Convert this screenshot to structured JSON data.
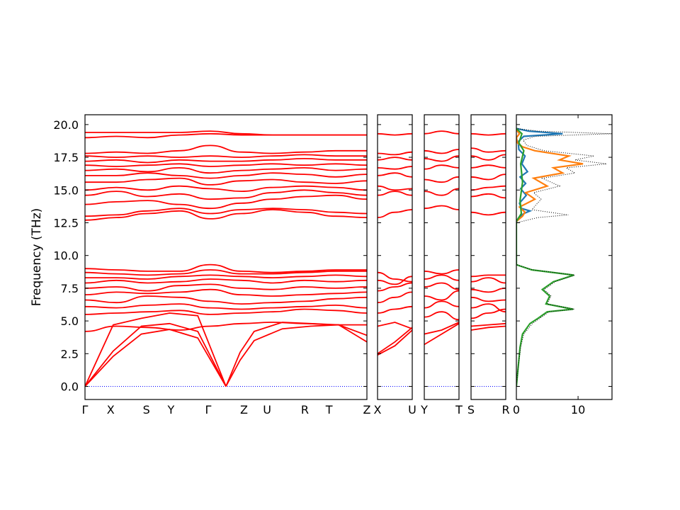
{
  "chart_data": {
    "type": "line",
    "title": "",
    "ylabel": "Frequency (THz)",
    "ylim": [
      -1.0,
      20.75
    ],
    "yticks": [
      0.0,
      2.5,
      5.0,
      7.5,
      10.0,
      12.5,
      15.0,
      17.5,
      20.0
    ],
    "ytick_labels": [
      "0.0",
      "2.5",
      "5.0",
      "7.5",
      "10.0",
      "12.5",
      "15.0",
      "17.5",
      "20.0"
    ],
    "band_color": "#ff0000",
    "zero_line_color": "#0000ff",
    "panels": [
      {
        "labels": [
          "Γ",
          "X",
          "S",
          "Y",
          "Γ",
          "Z",
          "U",
          "R",
          "T",
          "Z"
        ],
        "branches": [
          [
            [
              0.0,
              0
            ],
            [
              0.1,
              2.3
            ],
            [
              0.2,
              4.0
            ],
            [
              0.3,
              4.35
            ],
            [
              0.4,
              3.7
            ],
            [
              0.5,
              0
            ]
          ],
          [
            [
              0.0,
              0
            ],
            [
              0.1,
              2.7
            ],
            [
              0.2,
              4.6
            ],
            [
              0.3,
              4.8
            ],
            [
              0.4,
              4.2
            ],
            [
              0.5,
              0
            ]
          ],
          [
            [
              0.0,
              0
            ],
            [
              0.1,
              4.7
            ],
            [
              0.2,
              5.2
            ],
            [
              0.3,
              5.6
            ],
            [
              0.4,
              5.4
            ],
            [
              0.5,
              0
            ]
          ],
          [
            [
              0.5,
              0
            ],
            [
              0.55,
              2.0
            ],
            [
              0.6,
              3.5
            ],
            [
              0.7,
              4.4
            ],
            [
              0.8,
              4.6
            ],
            [
              0.9,
              4.7
            ],
            [
              1.0,
              3.4
            ]
          ],
          [
            [
              0.5,
              0
            ],
            [
              0.55,
              2.6
            ],
            [
              0.6,
              4.2
            ],
            [
              0.7,
              4.9
            ],
            [
              0.8,
              4.8
            ],
            [
              0.9,
              4.7
            ],
            [
              1.0,
              3.9
            ]
          ]
        ],
        "flat_bands": [
          [
            4.2,
            4.6,
            4.5,
            4.3,
            4.6,
            4.8,
            4.9,
            4.8,
            4.7,
            4.7
          ],
          [
            5.5,
            5.6,
            5.7,
            5.8,
            5.5,
            5.6,
            5.7,
            5.9,
            5.8,
            5.6
          ],
          [
            6.1,
            6.0,
            6.2,
            6.3,
            6.0,
            5.9,
            6.0,
            6.1,
            6.2,
            6.0
          ],
          [
            6.6,
            6.4,
            6.9,
            6.8,
            6.5,
            6.3,
            6.4,
            6.5,
            6.7,
            6.8
          ],
          [
            7.0,
            7.2,
            7.1,
            7.2,
            7.4,
            7.0,
            6.9,
            7.0,
            7.1,
            7.2
          ],
          [
            7.5,
            7.6,
            7.3,
            7.7,
            7.8,
            7.5,
            7.4,
            7.6,
            7.5,
            7.6
          ],
          [
            7.9,
            8.1,
            7.9,
            8.0,
            8.2,
            8.1,
            7.9,
            8.1,
            8.0,
            8.1
          ],
          [
            8.3,
            8.3,
            8.2,
            8.4,
            8.5,
            8.4,
            8.3,
            8.4,
            8.5,
            8.4
          ],
          [
            8.7,
            8.6,
            8.5,
            8.6,
            8.9,
            8.6,
            8.6,
            8.7,
            8.8,
            8.8
          ],
          [
            9.0,
            8.9,
            8.8,
            8.8,
            9.3,
            8.8,
            8.7,
            8.8,
            8.9,
            8.9
          ],
          [
            12.7,
            12.9,
            13.2,
            13.4,
            12.8,
            13.2,
            13.5,
            13.3,
            13.0,
            12.9
          ],
          [
            13.0,
            13.1,
            13.4,
            13.6,
            13.2,
            13.5,
            13.6,
            13.5,
            13.3,
            13.2
          ],
          [
            13.9,
            14.1,
            14.2,
            13.9,
            13.6,
            14.0,
            14.3,
            14.5,
            14.6,
            14.3
          ],
          [
            14.6,
            14.9,
            14.5,
            14.7,
            14.3,
            14.4,
            14.8,
            15.0,
            14.8,
            14.6
          ],
          [
            15.0,
            15.2,
            15.0,
            15.3,
            15.1,
            14.9,
            15.2,
            15.3,
            15.2,
            15.0
          ],
          [
            15.6,
            15.6,
            15.8,
            15.9,
            15.4,
            15.7,
            15.8,
            15.6,
            15.5,
            15.7
          ],
          [
            16.1,
            16.1,
            16.3,
            16.1,
            15.9,
            16.1,
            16.3,
            16.2,
            16.0,
            16.2
          ],
          [
            16.5,
            16.6,
            16.4,
            16.7,
            16.3,
            16.5,
            16.6,
            16.7,
            16.5,
            16.6
          ],
          [
            16.9,
            16.8,
            16.9,
            17.0,
            16.8,
            16.9,
            17.0,
            16.9,
            17.0,
            16.9
          ],
          [
            17.2,
            17.3,
            17.1,
            17.3,
            17.2,
            17.2,
            17.3,
            17.4,
            17.3,
            17.3
          ],
          [
            17.6,
            17.5,
            17.6,
            17.5,
            17.6,
            17.5,
            17.6,
            17.7,
            17.6,
            17.6
          ],
          [
            17.8,
            17.9,
            17.8,
            18.0,
            18.4,
            17.9,
            17.8,
            17.9,
            18.0,
            18.0
          ],
          [
            19.0,
            19.1,
            19.0,
            19.2,
            19.3,
            19.2,
            19.2,
            19.2,
            19.2,
            19.2
          ],
          [
            19.4,
            19.4,
            19.4,
            19.4,
            19.5,
            19.3,
            19.2,
            19.2,
            19.2,
            19.2
          ]
        ]
      },
      {
        "labels": [
          "X",
          "U"
        ],
        "branches": [
          [
            [
              0.0,
              2.4
            ],
            [
              0.5,
              3.1
            ],
            [
              1.0,
              4.3
            ]
          ],
          [
            [
              0.0,
              2.5
            ],
            [
              0.5,
              3.4
            ],
            [
              1.0,
              4.5
            ]
          ],
          [
            [
              0.0,
              4.6
            ],
            [
              0.5,
              4.9
            ],
            [
              1.0,
              4.4
            ]
          ]
        ],
        "flat_bands": [
          [
            5.6,
            5.9,
            6.1
          ],
          [
            6.4,
            6.8,
            7.2
          ],
          [
            7.3,
            7.6,
            7.9
          ],
          [
            8.1,
            7.8,
            8.4
          ],
          [
            8.7,
            8.2,
            8.0
          ],
          [
            12.9,
            13.3,
            13.5
          ],
          [
            14.6,
            14.9,
            14.6
          ],
          [
            15.3,
            15.0,
            15.1
          ],
          [
            16.1,
            16.3,
            16.0
          ],
          [
            16.7,
            16.6,
            16.8
          ],
          [
            17.3,
            17.5,
            17.3
          ],
          [
            17.8,
            17.7,
            17.9
          ],
          [
            19.3,
            19.2,
            19.3
          ]
        ]
      },
      {
        "labels": [
          "Y",
          "T"
        ],
        "branches": [
          [
            [
              0.0,
              3.2
            ],
            [
              0.5,
              4.0
            ],
            [
              1.0,
              4.8
            ]
          ],
          [
            [
              0.0,
              4.0
            ],
            [
              0.5,
              4.3
            ],
            [
              1.0,
              4.9
            ]
          ]
        ],
        "flat_bands": [
          [
            5.3,
            5.7,
            5.1
          ],
          [
            6.0,
            6.5,
            6.1
          ],
          [
            6.9,
            6.6,
            7.3
          ],
          [
            7.6,
            7.9,
            7.4
          ],
          [
            8.2,
            8.5,
            8.1
          ],
          [
            8.8,
            8.6,
            8.9
          ],
          [
            13.6,
            13.8,
            13.5
          ],
          [
            14.9,
            14.6,
            15.1
          ],
          [
            15.8,
            15.6,
            16.0
          ],
          [
            16.6,
            16.9,
            16.7
          ],
          [
            17.4,
            17.2,
            17.6
          ],
          [
            18.0,
            17.8,
            18.1
          ],
          [
            19.3,
            19.5,
            19.3
          ]
        ]
      },
      {
        "labels": [
          "S",
          "R"
        ],
        "branches": [
          [
            [
              0.0,
              4.3
            ],
            [
              0.5,
              4.5
            ],
            [
              1.0,
              4.6
            ]
          ],
          [
            [
              0.0,
              4.6
            ],
            [
              0.5,
              4.7
            ],
            [
              1.0,
              4.8
            ]
          ]
        ],
        "flat_bands": [
          [
            5.2,
            5.6,
            5.9
          ],
          [
            6.0,
            6.3,
            5.7
          ],
          [
            6.8,
            6.5,
            6.6
          ],
          [
            7.4,
            7.2,
            7.5
          ],
          [
            8.0,
            8.3,
            7.9
          ],
          [
            8.4,
            8.5,
            8.5
          ],
          [
            13.3,
            13.1,
            13.3
          ],
          [
            14.5,
            14.7,
            14.4
          ],
          [
            15.0,
            15.2,
            15.3
          ],
          [
            16.0,
            15.8,
            16.2
          ],
          [
            16.7,
            16.9,
            16.7
          ],
          [
            17.6,
            17.3,
            17.7
          ],
          [
            18.2,
            17.9,
            18.0
          ],
          [
            19.3,
            19.2,
            19.3
          ]
        ]
      }
    ],
    "dos": {
      "xlim": [
        0,
        15.5
      ],
      "xticks": [
        0,
        10
      ],
      "xtick_labels": [
        "0",
        "10"
      ],
      "series": [
        {
          "color": "#1f77b4",
          "points": [
            [
              0,
              12.6
            ],
            [
              0.4,
              12.9
            ],
            [
              1.2,
              13.2
            ],
            [
              2.2,
              13.4
            ],
            [
              0.8,
              13.6
            ],
            [
              0.5,
              14.0
            ],
            [
              1.6,
              14.6
            ],
            [
              0.7,
              15.1
            ],
            [
              1.5,
              15.5
            ],
            [
              0.6,
              16.0
            ],
            [
              1.8,
              16.4
            ],
            [
              0.9,
              17.0
            ],
            [
              1.4,
              17.6
            ],
            [
              0.4,
              18.1
            ],
            [
              0.3,
              18.7
            ],
            [
              1.2,
              19.1
            ],
            [
              7.5,
              19.3
            ],
            [
              2.0,
              19.5
            ],
            [
              0,
              19.7
            ]
          ]
        },
        {
          "color": "#ff7f0e",
          "points": [
            [
              0,
              12.6
            ],
            [
              1.0,
              13.0
            ],
            [
              1.4,
              13.3
            ],
            [
              0.5,
              13.7
            ],
            [
              3.0,
              14.3
            ],
            [
              1.5,
              14.8
            ],
            [
              5.0,
              15.3
            ],
            [
              2.8,
              15.9
            ],
            [
              7.5,
              16.3
            ],
            [
              6.0,
              16.7
            ],
            [
              10.8,
              17.0
            ],
            [
              7.0,
              17.3
            ],
            [
              8.5,
              17.6
            ],
            [
              3.0,
              18.0
            ],
            [
              1.0,
              18.3
            ],
            [
              0.2,
              18.6
            ],
            [
              0.0,
              19.0
            ],
            [
              0.5,
              19.3
            ],
            [
              0,
              19.6
            ]
          ]
        },
        {
          "color": "#2ca02c",
          "points": [
            [
              0,
              0.0
            ],
            [
              0.3,
              1.5
            ],
            [
              0.6,
              3.0
            ],
            [
              1.0,
              4.0
            ],
            [
              2.2,
              4.8
            ],
            [
              3.5,
              5.2
            ],
            [
              5.0,
              5.7
            ],
            [
              9.2,
              5.9
            ],
            [
              4.8,
              6.3
            ],
            [
              5.4,
              6.9
            ],
            [
              4.2,
              7.4
            ],
            [
              6.0,
              8.0
            ],
            [
              9.3,
              8.5
            ],
            [
              2.5,
              8.9
            ],
            [
              0.6,
              9.2
            ],
            [
              0,
              9.3
            ],
            [
              0,
              12.6
            ],
            [
              0.8,
              13.2
            ],
            [
              0.6,
              14.2
            ],
            [
              1.0,
              15.6
            ],
            [
              0.7,
              17.0
            ],
            [
              1.2,
              18.0
            ],
            [
              0.4,
              18.6
            ],
            [
              0.9,
              19.3
            ],
            [
              0,
              19.7
            ]
          ]
        },
        {
          "color": "#000000",
          "dotted": true,
          "points": [
            [
              0,
              0.0
            ],
            [
              0.3,
              1.5
            ],
            [
              0.7,
              3.0
            ],
            [
              1.2,
              4.0
            ],
            [
              2.6,
              4.8
            ],
            [
              3.8,
              5.2
            ],
            [
              5.3,
              5.7
            ],
            [
              9.4,
              5.9
            ],
            [
              5.0,
              6.3
            ],
            [
              5.6,
              6.9
            ],
            [
              4.5,
              7.4
            ],
            [
              6.3,
              8.0
            ],
            [
              9.5,
              8.5
            ],
            [
              2.7,
              8.9
            ],
            [
              0.7,
              9.2
            ],
            [
              0,
              9.3
            ],
            [
              0,
              12.5
            ],
            [
              3.5,
              12.9
            ],
            [
              8.4,
              13.1
            ],
            [
              2.5,
              13.5
            ],
            [
              4.0,
              14.3
            ],
            [
              2.8,
              14.8
            ],
            [
              7.0,
              15.3
            ],
            [
              4.2,
              15.9
            ],
            [
              9.5,
              16.3
            ],
            [
              8.1,
              16.7
            ],
            [
              14.6,
              17.0
            ],
            [
              9.5,
              17.3
            ],
            [
              12.6,
              17.6
            ],
            [
              4.5,
              18.0
            ],
            [
              1.7,
              18.4
            ],
            [
              1.1,
              18.8
            ],
            [
              3.0,
              19.1
            ],
            [
              15.5,
              19.3
            ],
            [
              3.5,
              19.5
            ],
            [
              0,
              19.7
            ]
          ]
        }
      ]
    }
  }
}
